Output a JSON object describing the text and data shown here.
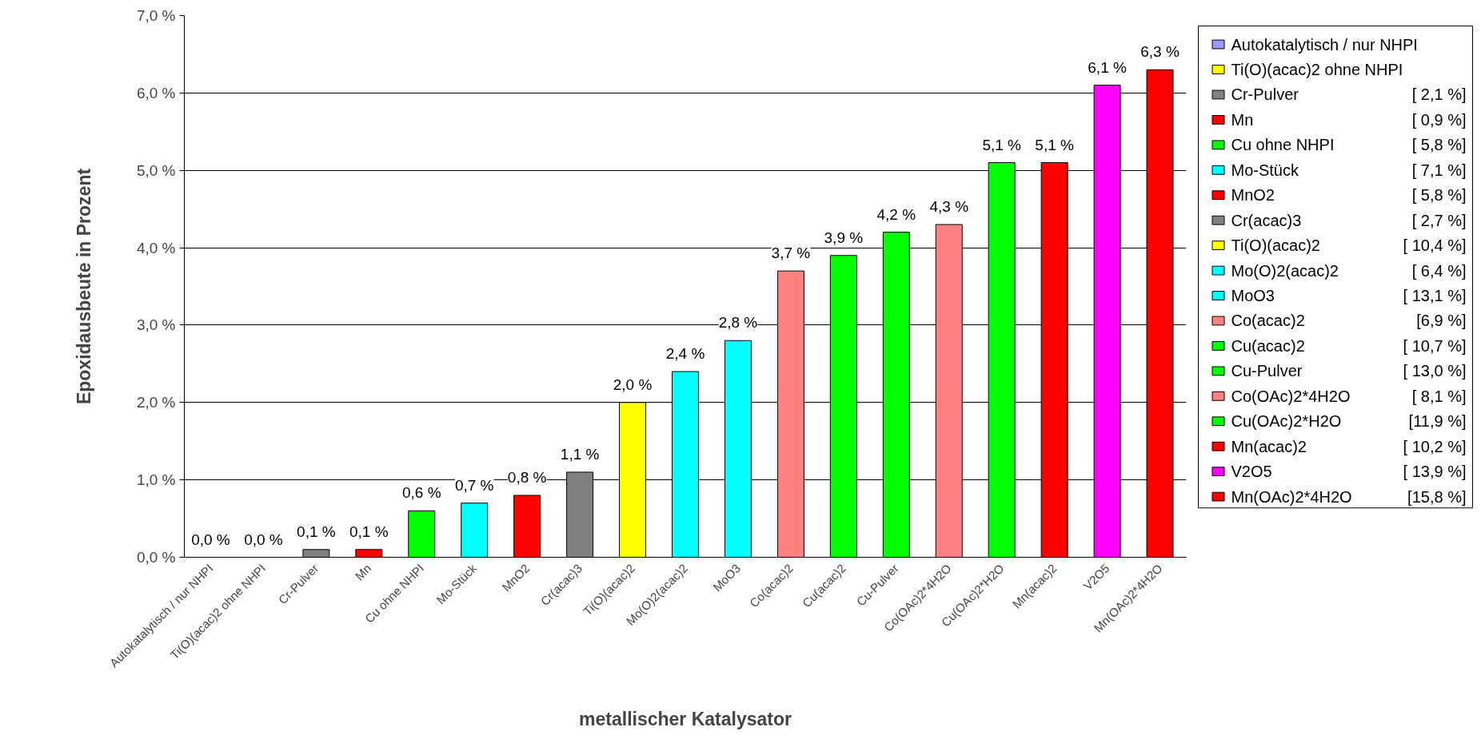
{
  "chart_data": {
    "type": "bar",
    "xlabel": "metallischer Katalysator",
    "ylabel": "Epoxidausbeute in Prozent",
    "categories": [
      "Autokatalytisch / nur NHPI",
      "Ti(O)(acac)2 ohne NHPI",
      "Cr-Pulver",
      "Mn",
      "Cu ohne NHPI",
      "Mo-Stück",
      "MnO2",
      "Cr(acac)3",
      "Ti(O)(acac)2",
      "Mo(O)2(acac)2",
      "MoO3",
      "Co(acac)2",
      "Cu(acac)2",
      "Cu-Pulver",
      "Co(OAc)2*4H2O",
      "Cu(OAc)2*H2O",
      "Mn(acac)2",
      "V2O5",
      "Mn(OAc)2*4H2O"
    ],
    "series": [
      {
        "name": "Autokatalytisch / nur NHPI",
        "color": "#9999ff",
        "values": [
          0.0,
          null,
          null,
          null,
          null,
          null,
          null,
          null,
          null,
          null,
          null,
          null,
          null,
          null,
          null,
          null,
          null,
          null,
          null
        ],
        "value_labels": [
          "0,0 %",
          null,
          null,
          null,
          null,
          null,
          null,
          null,
          null,
          null,
          null,
          null,
          null,
          null,
          null,
          null,
          null,
          null,
          null
        ]
      },
      {
        "name": "Ti(O)(acac)2 ohne NHPI",
        "color": "#ffff00",
        "values": [
          null,
          0.0,
          null,
          null,
          null,
          null,
          null,
          null,
          null,
          null,
          null,
          null,
          null,
          null,
          null,
          null,
          null,
          null,
          null
        ],
        "value_labels": [
          null,
          "0,0 %",
          null,
          null,
          null,
          null,
          null,
          null,
          null,
          null,
          null,
          null,
          null,
          null,
          null,
          null,
          null,
          null,
          null
        ]
      },
      {
        "name": "Cr-Pulver",
        "color": "#808080",
        "values": [
          null,
          null,
          0.1,
          null,
          null,
          null,
          null,
          null,
          null,
          null,
          null,
          null,
          null,
          null,
          null,
          null,
          null,
          null,
          null
        ],
        "value_labels": [
          null,
          null,
          "0,1 %",
          null,
          null,
          null,
          null,
          null,
          null,
          null,
          null,
          null,
          null,
          null,
          null,
          null,
          null,
          null,
          null
        ]
      },
      {
        "name": "Mn",
        "color": "#ff0000",
        "values": [
          null,
          null,
          null,
          0.1,
          null,
          null,
          null,
          null,
          null,
          null,
          null,
          null,
          null,
          null,
          null,
          null,
          null,
          null,
          null
        ],
        "value_labels": [
          null,
          null,
          null,
          "0,1 %",
          null,
          null,
          null,
          null,
          null,
          null,
          null,
          null,
          null,
          null,
          null,
          null,
          null,
          null,
          null
        ]
      },
      {
        "name": "Cu ohne NHPI",
        "color": "#00ff00",
        "values": [
          null,
          null,
          null,
          null,
          0.6,
          null,
          null,
          null,
          null,
          null,
          null,
          null,
          null,
          null,
          null,
          null,
          null,
          null,
          null
        ],
        "value_labels": [
          null,
          null,
          null,
          null,
          "0,6 %",
          null,
          null,
          null,
          null,
          null,
          null,
          null,
          null,
          null,
          null,
          null,
          null,
          null,
          null
        ]
      },
      {
        "name": "Mo-Stück",
        "color": "#00ffff",
        "values": [
          null,
          null,
          null,
          null,
          null,
          0.7,
          null,
          null,
          null,
          null,
          null,
          null,
          null,
          null,
          null,
          null,
          null,
          null,
          null
        ],
        "value_labels": [
          null,
          null,
          null,
          null,
          null,
          "0,7 %",
          null,
          null,
          null,
          null,
          null,
          null,
          null,
          null,
          null,
          null,
          null,
          null,
          null
        ]
      },
      {
        "name": "MnO2",
        "color": "#ff0000",
        "values": [
          null,
          null,
          null,
          null,
          null,
          null,
          0.8,
          null,
          null,
          null,
          null,
          null,
          null,
          null,
          null,
          null,
          null,
          null,
          null
        ],
        "value_labels": [
          null,
          null,
          null,
          null,
          null,
          null,
          "0,8 %",
          null,
          null,
          null,
          null,
          null,
          null,
          null,
          null,
          null,
          null,
          null,
          null
        ]
      },
      {
        "name": "Cr(acac)3",
        "color": "#808080",
        "values": [
          null,
          null,
          null,
          null,
          null,
          null,
          null,
          1.1,
          null,
          null,
          null,
          null,
          null,
          null,
          null,
          null,
          null,
          null,
          null
        ],
        "value_labels": [
          null,
          null,
          null,
          null,
          null,
          null,
          null,
          "1,1 %",
          null,
          null,
          null,
          null,
          null,
          null,
          null,
          null,
          null,
          null,
          null
        ]
      },
      {
        "name": "Ti(O)(acac)2",
        "color": "#ffff00",
        "values": [
          null,
          null,
          null,
          null,
          null,
          null,
          null,
          null,
          2.0,
          null,
          null,
          null,
          null,
          null,
          null,
          null,
          null,
          null,
          null
        ],
        "value_labels": [
          null,
          null,
          null,
          null,
          null,
          null,
          null,
          null,
          "2,0 %",
          null,
          null,
          null,
          null,
          null,
          null,
          null,
          null,
          null,
          null
        ]
      },
      {
        "name": "Mo(O)2(acac)2",
        "color": "#00ffff",
        "values": [
          null,
          null,
          null,
          null,
          null,
          null,
          null,
          null,
          null,
          2.4,
          null,
          null,
          null,
          null,
          null,
          null,
          null,
          null,
          null
        ],
        "value_labels": [
          null,
          null,
          null,
          null,
          null,
          null,
          null,
          null,
          null,
          "2,4 %",
          null,
          null,
          null,
          null,
          null,
          null,
          null,
          null,
          null
        ]
      },
      {
        "name": "MoO3",
        "color": "#00ffff",
        "values": [
          null,
          null,
          null,
          null,
          null,
          null,
          null,
          null,
          null,
          null,
          2.8,
          null,
          null,
          null,
          null,
          null,
          null,
          null,
          null
        ],
        "value_labels": [
          null,
          null,
          null,
          null,
          null,
          null,
          null,
          null,
          null,
          null,
          "2,8 %",
          null,
          null,
          null,
          null,
          null,
          null,
          null,
          null
        ]
      },
      {
        "name": "Co(acac)2",
        "color": "#ff8080",
        "values": [
          null,
          null,
          null,
          null,
          null,
          null,
          null,
          null,
          null,
          null,
          null,
          3.7,
          null,
          null,
          null,
          null,
          null,
          null,
          null
        ],
        "value_labels": [
          null,
          null,
          null,
          null,
          null,
          null,
          null,
          null,
          null,
          null,
          null,
          "3,7 %",
          null,
          null,
          null,
          null,
          null,
          null,
          null
        ]
      },
      {
        "name": "Cu(acac)2",
        "color": "#00ff00",
        "values": [
          null,
          null,
          null,
          null,
          null,
          null,
          null,
          null,
          null,
          null,
          null,
          null,
          3.9,
          null,
          null,
          null,
          null,
          null,
          null
        ],
        "value_labels": [
          null,
          null,
          null,
          null,
          null,
          null,
          null,
          null,
          null,
          null,
          null,
          null,
          "3,9 %",
          null,
          null,
          null,
          null,
          null,
          null
        ]
      },
      {
        "name": "Cu-Pulver",
        "color": "#00ff00",
        "values": [
          null,
          null,
          null,
          null,
          null,
          null,
          null,
          null,
          null,
          null,
          null,
          null,
          null,
          4.2,
          null,
          null,
          null,
          null,
          null
        ],
        "value_labels": [
          null,
          null,
          null,
          null,
          null,
          null,
          null,
          null,
          null,
          null,
          null,
          null,
          null,
          "4,2 %",
          null,
          null,
          null,
          null,
          null
        ]
      },
      {
        "name": "Co(OAc)2*4H2O",
        "color": "#ff8080",
        "values": [
          null,
          null,
          null,
          null,
          null,
          null,
          null,
          null,
          null,
          null,
          null,
          null,
          null,
          null,
          4.3,
          null,
          null,
          null,
          null
        ],
        "value_labels": [
          null,
          null,
          null,
          null,
          null,
          null,
          null,
          null,
          null,
          null,
          null,
          null,
          null,
          null,
          "4,3 %",
          null,
          null,
          null,
          null
        ]
      },
      {
        "name": "Cu(OAc)2*H2O",
        "color": "#00ff00",
        "values": [
          null,
          null,
          null,
          null,
          null,
          null,
          null,
          null,
          null,
          null,
          null,
          null,
          null,
          null,
          null,
          5.1,
          null,
          null,
          null
        ],
        "value_labels": [
          null,
          null,
          null,
          null,
          null,
          null,
          null,
          null,
          null,
          null,
          null,
          null,
          null,
          null,
          null,
          "5,1 %",
          null,
          null,
          null
        ]
      },
      {
        "name": "Mn(acac)2",
        "color": "#ff0000",
        "values": [
          null,
          null,
          null,
          null,
          null,
          null,
          null,
          null,
          null,
          null,
          null,
          null,
          null,
          null,
          null,
          null,
          5.1,
          null,
          null
        ],
        "value_labels": [
          null,
          null,
          null,
          null,
          null,
          null,
          null,
          null,
          null,
          null,
          null,
          null,
          null,
          null,
          null,
          null,
          "5,1 %",
          null,
          null
        ]
      },
      {
        "name": "V2O5",
        "color": "#ff00ff",
        "values": [
          null,
          null,
          null,
          null,
          null,
          null,
          null,
          null,
          null,
          null,
          null,
          null,
          null,
          null,
          null,
          null,
          null,
          6.1,
          null
        ],
        "value_labels": [
          null,
          null,
          null,
          null,
          null,
          null,
          null,
          null,
          null,
          null,
          null,
          null,
          null,
          null,
          null,
          null,
          null,
          "6,1 %",
          null
        ]
      },
      {
        "name": "Mn(OAc)2*4H2O",
        "color": "#ff0000",
        "values": [
          null,
          null,
          null,
          null,
          null,
          null,
          null,
          null,
          null,
          null,
          null,
          null,
          null,
          null,
          null,
          null,
          null,
          null,
          6.3
        ],
        "value_labels": [
          null,
          null,
          null,
          null,
          null,
          null,
          null,
          null,
          null,
          null,
          null,
          null,
          null,
          null,
          null,
          null,
          null,
          null,
          "6,3 %"
        ]
      }
    ],
    "ylim": [
      0,
      7
    ],
    "yticks": [
      {
        "value": 0,
        "label": "0,0 %"
      },
      {
        "value": 1,
        "label": "1,0 %"
      },
      {
        "value": 2,
        "label": "2,0 %"
      },
      {
        "value": 3,
        "label": "3,0 %"
      },
      {
        "value": 4,
        "label": "4,0 %"
      },
      {
        "value": 5,
        "label": "5,0 %"
      },
      {
        "value": 6,
        "label": "6,0 %"
      },
      {
        "value": 7,
        "label": "7,0 %"
      }
    ],
    "grid": "y",
    "legend": "right",
    "annotations": [
      "[ 2,1 %]",
      "[ 0,9 %]",
      "[ 5,8 %]",
      "[ 7,1 %]",
      "[ 5,8 %]",
      "[ 2,7 %]",
      "[ 10,4 %]",
      "[ 6,4 %]",
      "[ 13,1 %]",
      "[6,9 %]",
      "[ 10,7 %]",
      "[ 13,0 %]",
      "[ 8,1 %]",
      "[11,9 %]",
      "[ 10,2 %]",
      "[ 13,9 %]",
      "[15,8 %]"
    ]
  }
}
